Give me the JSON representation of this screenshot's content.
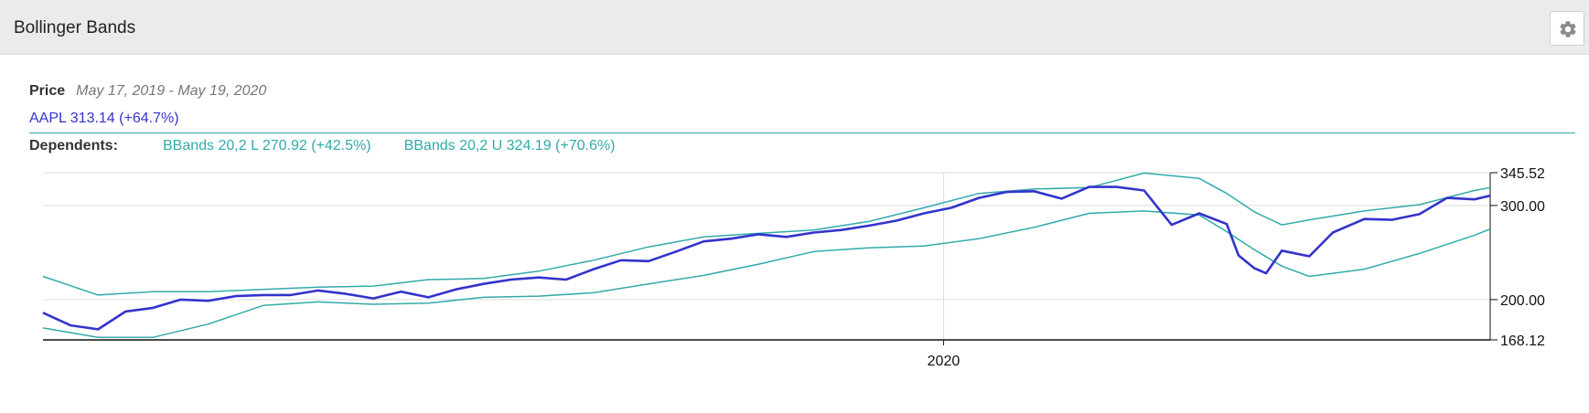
{
  "header": {
    "title": "Bollinger Bands",
    "settings_icon": "gear-icon"
  },
  "legend": {
    "price_label": "Price",
    "date_range": "May 17, 2019 - May 19, 2020",
    "main_series": "AAPL 313.14 (+64.7%)",
    "dependents_label": "Dependents:",
    "dependents": [
      "BBands 20,2 L 270.92 (+42.5%)",
      "BBands 20,2 U 324.19 (+70.6%)"
    ]
  },
  "colors": {
    "price": "#3333cc",
    "bands": "#33aaaa",
    "grid": "#dddddd",
    "axis": "#111111"
  },
  "chart_data": {
    "type": "line",
    "y_scale": "log",
    "ylim": [
      168.12,
      345.52
    ],
    "y_ticks": [
      "345.52",
      "300.00",
      "200.00",
      "168.12"
    ],
    "y_tick_values": [
      345.52,
      300,
      200,
      168.12
    ],
    "x_range": [
      "2019-05-17",
      "2020-05-19"
    ],
    "x_ticks": [
      {
        "date": "2020-01-01",
        "label": "2020"
      }
    ],
    "grid": true,
    "series": [
      {
        "name": "AAPL",
        "x": [
          "2019-05-17",
          "2019-05-24",
          "2019-05-31",
          "2019-06-07",
          "2019-06-14",
          "2019-06-21",
          "2019-06-28",
          "2019-07-05",
          "2019-07-12",
          "2019-07-19",
          "2019-07-26",
          "2019-08-02",
          "2019-08-09",
          "2019-08-16",
          "2019-08-23",
          "2019-08-30",
          "2019-09-06",
          "2019-09-13",
          "2019-09-20",
          "2019-09-27",
          "2019-10-04",
          "2019-10-11",
          "2019-10-18",
          "2019-10-25",
          "2019-11-01",
          "2019-11-08",
          "2019-11-15",
          "2019-11-22",
          "2019-11-29",
          "2019-12-06",
          "2019-12-13",
          "2019-12-20",
          "2019-12-27",
          "2020-01-03",
          "2020-01-10",
          "2020-01-17",
          "2020-01-24",
          "2020-01-31",
          "2020-02-07",
          "2020-02-14",
          "2020-02-21",
          "2020-02-28",
          "2020-03-06",
          "2020-03-13",
          "2020-03-16",
          "2020-03-20",
          "2020-03-23",
          "2020-03-27",
          "2020-04-03",
          "2020-04-09",
          "2020-04-17",
          "2020-04-24",
          "2020-05-01",
          "2020-05-08",
          "2020-05-15",
          "2020-05-19"
        ],
        "y": [
          189,
          179,
          176,
          190,
          193,
          200,
          199,
          203,
          204,
          204,
          208,
          205,
          201,
          207,
          202,
          209,
          214,
          218,
          220,
          218,
          228,
          237,
          236,
          246,
          257,
          260,
          265,
          262,
          267,
          270,
          275,
          281,
          290,
          297,
          310,
          318,
          319,
          309,
          325,
          325,
          320,
          276,
          290,
          277,
          242,
          229,
          224,
          247,
          241,
          267,
          283,
          282,
          289,
          310,
          308,
          313
        ]
      },
      {
        "name": "BBands 20,2 L",
        "x": [
          "2019-05-17",
          "2019-05-31",
          "2019-06-14",
          "2019-06-28",
          "2019-07-12",
          "2019-07-26",
          "2019-08-09",
          "2019-08-23",
          "2019-09-06",
          "2019-09-20",
          "2019-10-04",
          "2019-10-18",
          "2019-11-01",
          "2019-11-15",
          "2019-11-29",
          "2019-12-13",
          "2019-12-27",
          "2020-01-10",
          "2020-01-24",
          "2020-02-07",
          "2020-02-21",
          "2020-03-06",
          "2020-03-13",
          "2020-03-20",
          "2020-03-27",
          "2020-04-03",
          "2020-04-17",
          "2020-05-01",
          "2020-05-15",
          "2020-05-19"
        ],
        "y": [
          177,
          170,
          170,
          180,
          195,
          198,
          196,
          197,
          202,
          203,
          206,
          214,
          222,
          233,
          246,
          250,
          252,
          260,
          273,
          290,
          293,
          288,
          268,
          248,
          231,
          221,
          228,
          244,
          264,
          271
        ]
      },
      {
        "name": "BBands 20,2 U",
        "x": [
          "2019-05-17",
          "2019-05-31",
          "2019-06-14",
          "2019-06-28",
          "2019-07-12",
          "2019-07-26",
          "2019-08-09",
          "2019-08-23",
          "2019-09-06",
          "2019-09-20",
          "2019-10-04",
          "2019-10-18",
          "2019-11-01",
          "2019-11-15",
          "2019-11-29",
          "2019-12-13",
          "2019-12-27",
          "2020-01-10",
          "2020-01-24",
          "2020-02-07",
          "2020-02-21",
          "2020-03-06",
          "2020-03-13",
          "2020-03-20",
          "2020-03-27",
          "2020-04-03",
          "2020-04-17",
          "2020-05-01",
          "2020-05-15",
          "2020-05-19"
        ],
        "y": [
          221,
          204,
          207,
          207,
          209,
          211,
          212,
          218,
          219,
          226,
          237,
          251,
          262,
          266,
          270,
          280,
          297,
          316,
          322,
          324,
          345,
          337,
          316,
          292,
          276,
          282,
          293,
          301,
          320,
          324
        ]
      }
    ]
  }
}
